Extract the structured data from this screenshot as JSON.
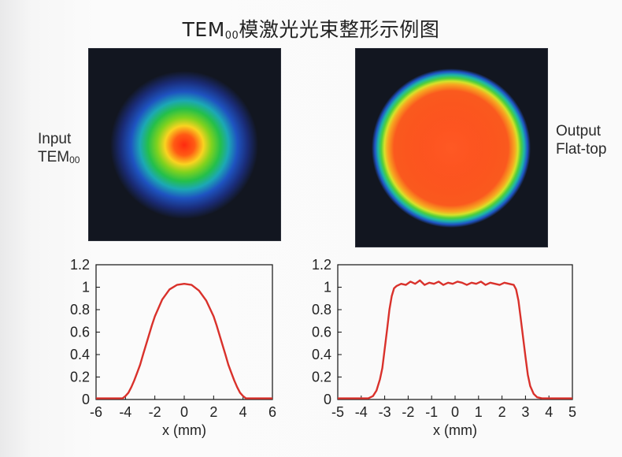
{
  "title": {
    "prefix": "TEM",
    "sub": "00",
    "suffix": "模激光光束整形示例图"
  },
  "labels": {
    "input_line1": "Input",
    "input_line2": "TEM",
    "input_sub": "00",
    "output_line1": "Output",
    "output_line2": "Flat-top"
  },
  "colors": {
    "curve": "#d9312b",
    "axes": "#111111",
    "beam_bg": "#121620"
  },
  "chart_data": [
    {
      "type": "line",
      "name": "Input TEM00 profile",
      "xlabel": "x (mm)",
      "ylabel": "",
      "xlim": [
        -6,
        6
      ],
      "ylim": [
        0,
        1.2
      ],
      "xticks": [
        -6,
        -4,
        -2,
        0,
        2,
        4,
        6
      ],
      "yticks": [
        0,
        0.2,
        0.4,
        0.6,
        0.8,
        1,
        1.2
      ],
      "ytick_labels": [
        "0",
        "0.2",
        "0.4",
        "0.6",
        "0.8",
        "1",
        "1.2"
      ],
      "x": [
        -6,
        -4.5,
        -4.2,
        -4.0,
        -3.8,
        -3.6,
        -3.4,
        -3.2,
        -3.0,
        -2.8,
        -2.5,
        -2.2,
        -2.0,
        -1.5,
        -1.0,
        -0.5,
        0,
        0.5,
        1.0,
        1.5,
        2.0,
        2.2,
        2.5,
        2.8,
        3.0,
        3.2,
        3.4,
        3.6,
        3.8,
        4.0,
        4.2,
        4.5,
        6
      ],
      "y": [
        0.01,
        0.01,
        0.01,
        0.03,
        0.06,
        0.11,
        0.17,
        0.24,
        0.31,
        0.4,
        0.53,
        0.66,
        0.74,
        0.89,
        0.98,
        1.02,
        1.03,
        1.02,
        0.97,
        0.88,
        0.74,
        0.66,
        0.53,
        0.4,
        0.31,
        0.24,
        0.17,
        0.11,
        0.06,
        0.03,
        0.01,
        0.01,
        0.01
      ]
    },
    {
      "type": "line",
      "name": "Output Flat-top profile",
      "xlabel": "x (mm)",
      "ylabel": "",
      "xlim": [
        -5,
        5
      ],
      "ylim": [
        0,
        1.2
      ],
      "xticks": [
        -5,
        -4,
        -3,
        -2,
        -1,
        0,
        1,
        2,
        3,
        4,
        5
      ],
      "yticks": [
        0,
        0.2,
        0.4,
        0.6,
        0.8,
        1,
        1.2
      ],
      "ytick_labels": [
        "0",
        "0.2",
        "0.4",
        "0.6",
        "0.8",
        "1",
        "1.2"
      ],
      "x": [
        -5,
        -3.7,
        -3.5,
        -3.35,
        -3.2,
        -3.1,
        -3.0,
        -2.9,
        -2.8,
        -2.7,
        -2.6,
        -2.5,
        -2.3,
        -2.1,
        -1.9,
        -1.7,
        -1.5,
        -1.3,
        -1.1,
        -0.9,
        -0.7,
        -0.5,
        -0.3,
        -0.1,
        0.1,
        0.3,
        0.5,
        0.7,
        0.9,
        1.1,
        1.3,
        1.5,
        1.7,
        1.9,
        2.1,
        2.3,
        2.5,
        2.6,
        2.7,
        2.8,
        2.9,
        3.0,
        3.1,
        3.2,
        3.35,
        3.5,
        3.7,
        5
      ],
      "y": [
        0.01,
        0.01,
        0.03,
        0.08,
        0.18,
        0.28,
        0.45,
        0.62,
        0.8,
        0.92,
        0.99,
        1.01,
        1.03,
        1.02,
        1.05,
        1.03,
        1.06,
        1.02,
        1.04,
        1.03,
        1.05,
        1.02,
        1.04,
        1.03,
        1.05,
        1.04,
        1.02,
        1.04,
        1.03,
        1.05,
        1.02,
        1.04,
        1.03,
        1.02,
        1.04,
        1.03,
        1.02,
        0.98,
        0.88,
        0.72,
        0.55,
        0.38,
        0.22,
        0.12,
        0.05,
        0.02,
        0.01,
        0.01
      ]
    }
  ]
}
